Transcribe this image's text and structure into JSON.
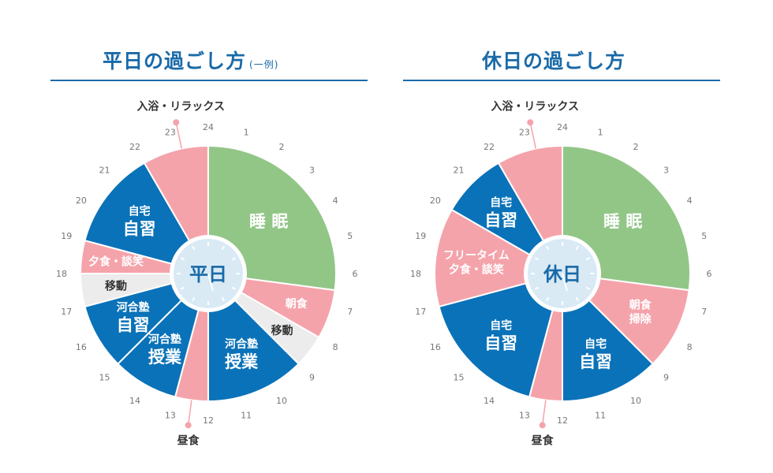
{
  "colors": {
    "sleep": "#92c687",
    "pink": "#f5a3ab",
    "blue": "#0a72b8",
    "gray": "#ececec",
    "center_fill": "#d9eaf5",
    "center_text": "#1a6aa8",
    "hour_label": "#777777",
    "outer_label": "#333333"
  },
  "hour_labels": [
    "24",
    "1",
    "2",
    "3",
    "4",
    "5",
    "6",
    "7",
    "8",
    "9",
    "10",
    "11",
    "12",
    "13",
    "14",
    "15",
    "16",
    "17",
    "18",
    "19",
    "20",
    "21",
    "22",
    "23"
  ],
  "weekday": {
    "title": "平日の過ごし方",
    "title_note": "(一例)",
    "center_label": "平日",
    "top_marker_label": "入浴・リラックス",
    "bottom_marker_label": "昼食",
    "segments": [
      {
        "start": 0,
        "end": 6.5,
        "color": "sleep",
        "lines": [
          "睡 眠"
        ],
        "big": [
          true
        ]
      },
      {
        "start": 6.5,
        "end": 8,
        "color": "pink",
        "lines": [
          "朝食"
        ],
        "big": [
          false
        ]
      },
      {
        "start": 8,
        "end": 9,
        "color": "gray",
        "lines": [
          "移動"
        ],
        "big": [
          false
        ]
      },
      {
        "start": 9,
        "end": 12,
        "color": "blue",
        "lines": [
          "河合塾",
          "授業"
        ],
        "big": [
          false,
          true
        ]
      },
      {
        "start": 12,
        "end": 13,
        "color": "pink",
        "lines": [],
        "big": []
      },
      {
        "start": 13,
        "end": 15,
        "color": "blue",
        "lines": [
          "河合塾",
          "授業"
        ],
        "big": [
          false,
          true
        ]
      },
      {
        "start": 15,
        "end": 17,
        "color": "blue",
        "lines": [
          "河合塾",
          "自習"
        ],
        "big": [
          false,
          true
        ]
      },
      {
        "start": 17,
        "end": 18,
        "color": "gray",
        "lines": [
          "移動"
        ],
        "big": [
          false
        ]
      },
      {
        "start": 18,
        "end": 19,
        "color": "pink",
        "lines": [
          "夕食・談笑"
        ],
        "big": [
          false
        ]
      },
      {
        "start": 19,
        "end": 22,
        "color": "blue",
        "lines": [
          "自宅",
          "自習"
        ],
        "big": [
          false,
          true
        ]
      },
      {
        "start": 22,
        "end": 24,
        "color": "pink",
        "lines": [],
        "big": []
      }
    ]
  },
  "holiday": {
    "title": "休日の過ごし方",
    "center_label": "休日",
    "top_marker_label": "入浴・リラックス",
    "bottom_marker_label": "昼食",
    "segments": [
      {
        "start": 0,
        "end": 6.5,
        "color": "sleep",
        "lines": [
          "睡 眠"
        ],
        "big": [
          true
        ]
      },
      {
        "start": 6.5,
        "end": 9,
        "color": "pink",
        "lines": [
          "朝食",
          "掃除"
        ],
        "big": [
          false,
          false
        ]
      },
      {
        "start": 9,
        "end": 12,
        "color": "blue",
        "lines": [
          "自宅",
          "自習"
        ],
        "big": [
          false,
          true
        ]
      },
      {
        "start": 12,
        "end": 13,
        "color": "pink",
        "lines": [],
        "big": []
      },
      {
        "start": 13,
        "end": 17,
        "color": "blue",
        "lines": [
          "自宅",
          "自習"
        ],
        "big": [
          false,
          true
        ]
      },
      {
        "start": 17,
        "end": 20,
        "color": "pink",
        "lines": [
          "フリータイム",
          "夕食・談笑"
        ],
        "big": [
          false,
          false
        ]
      },
      {
        "start": 20,
        "end": 22,
        "color": "blue",
        "lines": [
          "自宅",
          "自習"
        ],
        "big": [
          false,
          true
        ]
      },
      {
        "start": 22,
        "end": 24,
        "color": "pink",
        "lines": [],
        "big": []
      }
    ]
  }
}
